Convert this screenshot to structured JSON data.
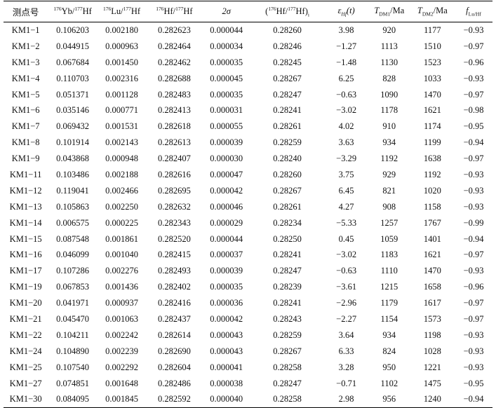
{
  "table": {
    "headers": {
      "point": "测点号",
      "yb_sup": "176",
      "yb_a": "Yb/",
      "yb_sup2": "177",
      "yb_b": "Hf",
      "lu_sup": "176",
      "lu_a": "Lu/",
      "lu_sup2": "177",
      "lu_b": "Hf",
      "hf_sup": "176",
      "hf_a": "Hf/",
      "hf_sup2": "177",
      "hf_b": "Hf",
      "sigma": "2σ",
      "hfi_open": "(",
      "hfi_sup": "176",
      "hfi_a": "Hf/",
      "hfi_sup2": "177",
      "hfi_b": "Hf",
      "hfi_close": ")",
      "hfi_sub": "i",
      "eps": "ε",
      "eps_sub": "Hf",
      "eps_t": "(t)",
      "tdm1": "T",
      "tdm1_sub": "DM1",
      "tdm1_unit": "/Ma",
      "tdm2": "T",
      "tdm2_sub": "DM2",
      "tdm2_unit": "/Ma",
      "flu": "f",
      "flu_sub": "Lu/Hf"
    },
    "rows": [
      [
        "KM1−1",
        "0.106203",
        "0.002180",
        "0.282623",
        "0.000044",
        "0.28260",
        "3.98",
        "920",
        "1177",
        "−0.93"
      ],
      [
        "KM1−2",
        "0.044915",
        "0.000963",
        "0.282464",
        "0.000034",
        "0.28246",
        "−1.27",
        "1113",
        "1510",
        "−0.97"
      ],
      [
        "KM1−3",
        "0.067684",
        "0.001450",
        "0.282462",
        "0.000035",
        "0.28245",
        "−1.48",
        "1130",
        "1523",
        "−0.96"
      ],
      [
        "KM1−4",
        "0.110703",
        "0.002316",
        "0.282688",
        "0.000045",
        "0.28267",
        "6.25",
        "828",
        "1033",
        "−0.93"
      ],
      [
        "KM1−5",
        "0.051371",
        "0.001128",
        "0.282483",
        "0.000035",
        "0.28247",
        "−0.63",
        "1090",
        "1470",
        "−0.97"
      ],
      [
        "KM1−6",
        "0.035146",
        "0.000771",
        "0.282413",
        "0.000031",
        "0.28241",
        "−3.02",
        "1178",
        "1621",
        "−0.98"
      ],
      [
        "KM1−7",
        "0.069432",
        "0.001531",
        "0.282618",
        "0.000055",
        "0.28261",
        "4.02",
        "910",
        "1174",
        "−0.95"
      ],
      [
        "KM1−8",
        "0.101914",
        "0.002143",
        "0.282613",
        "0.000039",
        "0.28259",
        "3.63",
        "934",
        "1199",
        "−0.94"
      ],
      [
        "KM1−9",
        "0.043868",
        "0.000948",
        "0.282407",
        "0.000030",
        "0.28240",
        "−3.29",
        "1192",
        "1638",
        "−0.97"
      ],
      [
        "KM1−11",
        "0.103486",
        "0.002188",
        "0.282616",
        "0.000047",
        "0.28260",
        "3.75",
        "929",
        "1192",
        "−0.93"
      ],
      [
        "KM1−12",
        "0.119041",
        "0.002466",
        "0.282695",
        "0.000042",
        "0.28267",
        "6.45",
        "821",
        "1020",
        "−0.93"
      ],
      [
        "KM1−13",
        "0.105863",
        "0.002250",
        "0.282632",
        "0.000046",
        "0.28261",
        "4.27",
        "908",
        "1158",
        "−0.93"
      ],
      [
        "KM1−14",
        "0.006575",
        "0.000225",
        "0.282343",
        "0.000029",
        "0.28234",
        "−5.33",
        "1257",
        "1767",
        "−0.99"
      ],
      [
        "KM1−15",
        "0.087548",
        "0.001861",
        "0.282520",
        "0.000044",
        "0.28250",
        "0.45",
        "1059",
        "1401",
        "−0.94"
      ],
      [
        "KM1−16",
        "0.046099",
        "0.001040",
        "0.282415",
        "0.000037",
        "0.28241",
        "−3.02",
        "1183",
        "1621",
        "−0.97"
      ],
      [
        "KM1−17",
        "0.107286",
        "0.002276",
        "0.282493",
        "0.000039",
        "0.28247",
        "−0.63",
        "1110",
        "1470",
        "−0.93"
      ],
      [
        "KM1−19",
        "0.067853",
        "0.001436",
        "0.282402",
        "0.000035",
        "0.28239",
        "−3.61",
        "1215",
        "1658",
        "−0.96"
      ],
      [
        "KM1−20",
        "0.041971",
        "0.000937",
        "0.282416",
        "0.000036",
        "0.28241",
        "−2.96",
        "1179",
        "1617",
        "−0.97"
      ],
      [
        "KM1−21",
        "0.045470",
        "0.001063",
        "0.282437",
        "0.000042",
        "0.28243",
        "−2.27",
        "1154",
        "1573",
        "−0.97"
      ],
      [
        "KM1−22",
        "0.104211",
        "0.002242",
        "0.282614",
        "0.000043",
        "0.28259",
        "3.64",
        "934",
        "1198",
        "−0.93"
      ],
      [
        "KM1−24",
        "0.104890",
        "0.002239",
        "0.282690",
        "0.000043",
        "0.28267",
        "6.33",
        "824",
        "1028",
        "−0.93"
      ],
      [
        "KM1−25",
        "0.107540",
        "0.002292",
        "0.282604",
        "0.000041",
        "0.28258",
        "3.28",
        "950",
        "1221",
        "−0.93"
      ],
      [
        "KM1−27",
        "0.074851",
        "0.001648",
        "0.282486",
        "0.000038",
        "0.28247",
        "−0.71",
        "1102",
        "1475",
        "−0.95"
      ],
      [
        "KM1−30",
        "0.084095",
        "0.001845",
        "0.282592",
        "0.000040",
        "0.28258",
        "2.98",
        "956",
        "1240",
        "−0.94"
      ]
    ]
  }
}
